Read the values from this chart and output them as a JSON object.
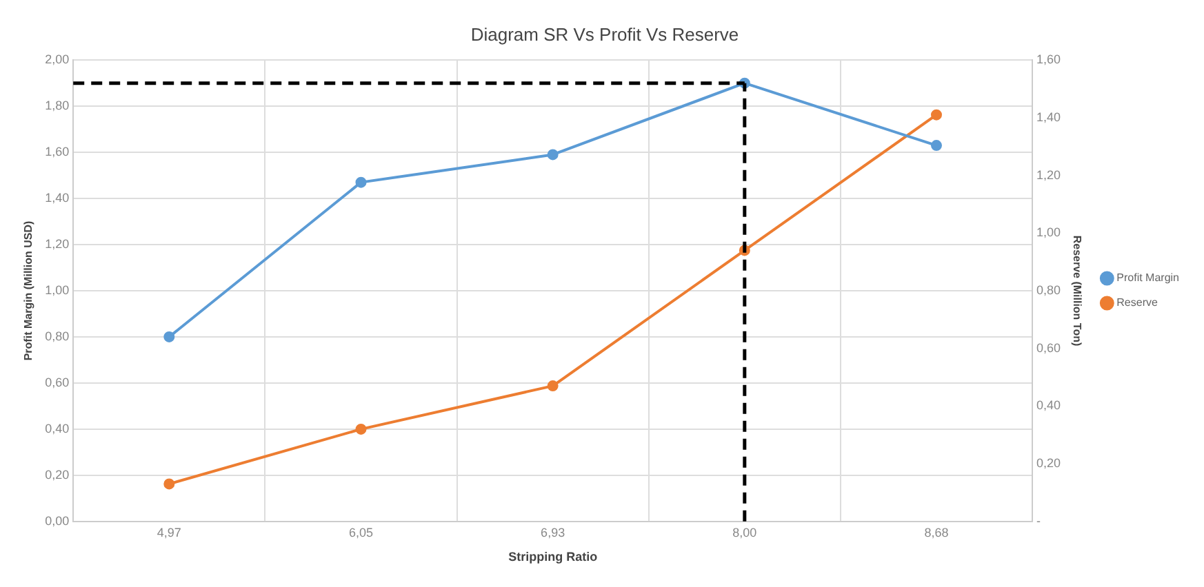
{
  "chart_data": {
    "type": "line",
    "title": "Diagram SR Vs Profit Vs Reserve",
    "xlabel": "Stripping Ratio",
    "ylabel": "Profit Margin (Million USD)",
    "y2label": "Reserve (Million Ton)",
    "categories": [
      "4,97",
      "6,05",
      "6,93",
      "8,00",
      "8,68"
    ],
    "series": [
      {
        "name": "Profit Margin",
        "color": "#5b9bd5",
        "values": [
          0.8,
          1.47,
          1.59,
          1.9,
          1.63
        ]
      },
      {
        "name": "Reserve",
        "color": "#ed7d31",
        "values": [
          0.13,
          0.32,
          0.47,
          0.94,
          1.41
        ],
        "axis": "y2"
      }
    ],
    "ylim": [
      0,
      2
    ],
    "yticks": [
      {
        "value": 0,
        "label": "0,00"
      },
      {
        "value": 0.2,
        "label": "0,20"
      },
      {
        "value": 0.4,
        "label": "0,40"
      },
      {
        "value": 0.6,
        "label": "0,60"
      },
      {
        "value": 0.8,
        "label": "0,80"
      },
      {
        "value": 1.0,
        "label": "1,00"
      },
      {
        "value": 1.2,
        "label": "1,20"
      },
      {
        "value": 1.4,
        "label": "1,40"
      },
      {
        "value": 1.6,
        "label": "1,60"
      },
      {
        "value": 1.8,
        "label": "1,80"
      },
      {
        "value": 2.0,
        "label": "2,00"
      }
    ],
    "y2lim": [
      0,
      1.6
    ],
    "y2ticks": [
      {
        "value": 0,
        "label": "-"
      },
      {
        "value": 0.2,
        "label": "0,20"
      },
      {
        "value": 0.4,
        "label": "0,40"
      },
      {
        "value": 0.6,
        "label": "0,60"
      },
      {
        "value": 0.8,
        "label": "0,80"
      },
      {
        "value": 1.0,
        "label": "1,00"
      },
      {
        "value": 1.2,
        "label": "1,20"
      },
      {
        "value": 1.4,
        "label": "1,40"
      },
      {
        "value": 1.6,
        "label": "1,60"
      }
    ],
    "ref_lines": [
      {
        "axis": "y",
        "value": 1.9,
        "color": "#000000",
        "line_style": "dashed"
      },
      {
        "axis": "x",
        "value": "8,00",
        "color": "#000000",
        "line_style": "dashed"
      }
    ],
    "grid": true,
    "legend": "right",
    "marker": "circle",
    "line_style": "solid"
  }
}
